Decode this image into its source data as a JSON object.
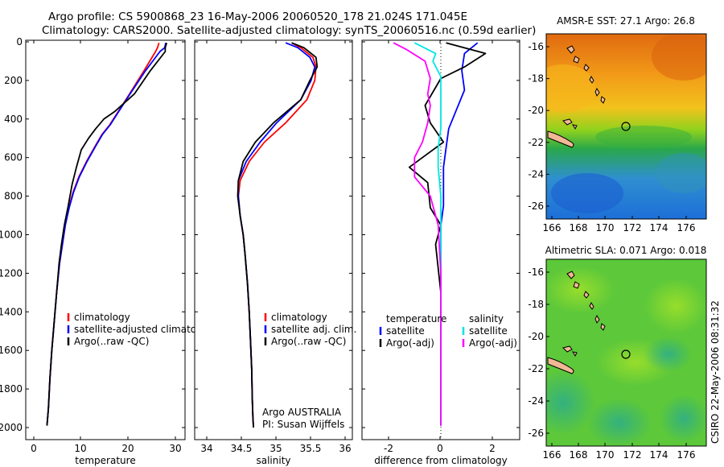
{
  "header": {
    "line1": "Argo profile: CS 5900868_23 16-May-2006 20060520_178 21.024S 171.045E",
    "line2": "Climatology: CARS2000. Satellite-adjusted climatology: synTS_20060516.nc (0.59d earlier)"
  },
  "side_label": "CSIRO 22-May-2006 08:31:32",
  "chart_data": [
    {
      "type": "line",
      "xlabel": "temperature",
      "ylabel": "",
      "xlim": [
        -2,
        31
      ],
      "ylim": [
        2050,
        0
      ],
      "xticks": [
        "0",
        "10",
        "20",
        "30"
      ],
      "yticks": [
        "0",
        "200",
        "400",
        "600",
        "800",
        "1000",
        "1200",
        "1400",
        "1600",
        "1800",
        "2000"
      ],
      "legend": [
        "climatology",
        "satellite-adjusted climatology",
        "Argo(..raw -QC)"
      ],
      "colors": {
        "climatology": "#ff0000",
        "satellite": "#0000ff",
        "argo": "#000000"
      },
      "series": [
        {
          "name": "climatology",
          "color": "#ff0000",
          "x": [
            25.6,
            25.3,
            24.9,
            22.5,
            19.5,
            17.2,
            15.4,
            13.8,
            12.4,
            10.6,
            9.0,
            7.8,
            6.9,
            6.2,
            5.6,
            5.0,
            4.4,
            3.9,
            3.4,
            3.0,
            2.7,
            2.4
          ],
          "y": [
            5,
            30,
            50,
            150,
            270,
            360,
            430,
            480,
            540,
            620,
            700,
            780,
            860,
            950,
            1050,
            1150,
            1300,
            1450,
            1600,
            1750,
            1900,
            1990
          ]
        },
        {
          "name": "satellite-adjusted climatology",
          "color": "#0000ff",
          "x": [
            27.0,
            26.8,
            25.8,
            22.8,
            19.6,
            17.3,
            15.5,
            13.9,
            12.5,
            10.7,
            9.1,
            7.9,
            7.0,
            6.2,
            5.6,
            5.0,
            4.4,
            3.9,
            3.4,
            3.0,
            2.7,
            2.4
          ],
          "y": [
            5,
            30,
            50,
            150,
            270,
            360,
            430,
            480,
            540,
            620,
            700,
            780,
            860,
            950,
            1050,
            1150,
            1300,
            1450,
            1600,
            1750,
            1900,
            1990
          ]
        },
        {
          "name": "Argo(..raw -QC)",
          "color": "#000000",
          "x": [
            27.2,
            26.9,
            26.9,
            23.8,
            20.5,
            16.5,
            14.2,
            12.5,
            11.0,
            9.5,
            8.5,
            7.6,
            6.8,
            6.0,
            5.4,
            4.9,
            4.4,
            3.9,
            3.4,
            3.0,
            2.7,
            2.4
          ],
          "y": [
            5,
            30,
            50,
            150,
            270,
            360,
            400,
            450,
            500,
            560,
            650,
            740,
            850,
            950,
            1050,
            1150,
            1300,
            1450,
            1600,
            1750,
            1900,
            1990
          ]
        }
      ]
    },
    {
      "type": "line",
      "xlabel": "salinity",
      "xlim": [
        33.7,
        36.3
      ],
      "ylim": [
        2050,
        0
      ],
      "xticks": [
        "34",
        "34.5",
        "35",
        "35.5",
        "36"
      ],
      "legend": [
        "climatology",
        "satellite adj. clim.",
        "Argo(..raw -QC)"
      ],
      "annotation": [
        "Argo AUSTRALIA",
        "PI: Susan Wijffels"
      ],
      "series": [
        {
          "name": "climatology",
          "color": "#ff0000",
          "x": [
            35.3,
            35.45,
            35.65,
            35.7,
            35.68,
            35.55,
            35.2,
            34.85,
            34.6,
            34.45,
            34.42,
            34.45,
            34.5,
            34.53,
            34.57,
            34.6,
            34.62,
            34.64,
            34.65,
            34.66,
            34.67
          ],
          "y": [
            5,
            30,
            80,
            130,
            200,
            300,
            420,
            520,
            620,
            720,
            800,
            900,
            1000,
            1100,
            1250,
            1400,
            1550,
            1700,
            1850,
            1950,
            2000
          ]
        },
        {
          "name": "satellite adj. clim.",
          "color": "#0000ff",
          "x": [
            35.2,
            35.4,
            35.6,
            35.68,
            35.62,
            35.45,
            35.05,
            34.78,
            34.55,
            34.42,
            34.42,
            34.45,
            34.5,
            34.53,
            34.57,
            34.6,
            34.62,
            34.64,
            34.65,
            34.66,
            34.67
          ],
          "y": [
            5,
            30,
            80,
            130,
            200,
            300,
            420,
            520,
            620,
            720,
            800,
            900,
            1000,
            1100,
            1250,
            1400,
            1550,
            1700,
            1850,
            1950,
            2000
          ]
        },
        {
          "name": "Argo(..raw -QC)",
          "color": "#000000",
          "x": [
            35.3,
            35.5,
            35.7,
            35.72,
            35.6,
            35.45,
            35.0,
            34.7,
            34.5,
            34.42,
            34.41,
            34.45,
            34.5,
            34.53,
            34.57,
            34.6,
            34.62,
            34.64,
            34.65,
            34.66,
            34.67
          ],
          "y": [
            5,
            30,
            80,
            130,
            200,
            300,
            420,
            520,
            620,
            720,
            800,
            900,
            1000,
            1100,
            1250,
            1400,
            1550,
            1700,
            1850,
            1950,
            2000
          ]
        }
      ]
    },
    {
      "type": "line",
      "xlabel": "difference from climatology",
      "xlim": [
        -3,
        3
      ],
      "ylim": [
        2050,
        0
      ],
      "xticks": [
        "-2",
        "0",
        "2"
      ],
      "legend_left_title": "temperature",
      "legend_right_title": "salinity",
      "legend": [
        "satellite",
        "Argo(-adj)",
        "satellite",
        "Argo(-adj)"
      ],
      "series": [
        {
          "name": "temperature satellite",
          "color": "#0000ff",
          "x": [
            1.4,
            0.9,
            0.8,
            0.9,
            0.6,
            0.3,
            0.2,
            0.1,
            0.1,
            0.1,
            0.0,
            0.0,
            0.0,
            0.0,
            0.0,
            0.0
          ],
          "y": [
            5,
            60,
            150,
            250,
            350,
            450,
            550,
            650,
            750,
            850,
            950,
            1100,
            1300,
            1600,
            1800,
            1990
          ]
        },
        {
          "name": "temperature Argo(-adj)",
          "color": "#000000",
          "x": [
            0.2,
            1.7,
            0.9,
            0.0,
            -0.6,
            -0.4,
            0.1,
            -0.7,
            -1.2,
            -0.5,
            -0.4,
            0.0,
            -0.2,
            0.0,
            0.0,
            0.0
          ],
          "y": [
            5,
            60,
            130,
            190,
            330,
            420,
            520,
            600,
            650,
            730,
            860,
            950,
            1050,
            1300,
            1600,
            1990
          ]
        },
        {
          "name": "salinity satellite",
          "color": "#00e5e5",
          "x": [
            -1.0,
            -0.2,
            -0.3,
            0.0,
            0.0,
            0.0,
            -0.1,
            -0.1,
            0.0,
            0.0,
            0.0,
            0.0
          ],
          "y": [
            5,
            60,
            100,
            180,
            300,
            450,
            550,
            650,
            800,
            1000,
            1400,
            1990
          ]
        },
        {
          "name": "salinity Argo(-adj)",
          "color": "#ff00ff",
          "x": [
            -1.8,
            -1.3,
            -0.6,
            -0.4,
            -0.5,
            -0.4,
            -0.5,
            -0.7,
            -1.0,
            -1.0,
            -0.4,
            -0.1,
            0.0,
            0.0
          ],
          "y": [
            5,
            40,
            100,
            190,
            270,
            330,
            420,
            520,
            600,
            700,
            800,
            950,
            1200,
            1990
          ]
        }
      ]
    }
  ],
  "maps": {
    "sst": {
      "title": "AMSR-E SST: 27.1 Argo: 26.8",
      "xticks": [
        "166",
        "168",
        "170",
        "172",
        "174",
        "176"
      ],
      "yticks": [
        "-16",
        "-18",
        "-20",
        "-22",
        "-24",
        "-26"
      ]
    },
    "sla": {
      "title": "Altimetric SLA: 0.071 Argo: 0.018",
      "xticks": [
        "166",
        "168",
        "170",
        "172",
        "174",
        "176"
      ],
      "yticks": [
        "-16",
        "-18",
        "-20",
        "-22",
        "-24",
        "-26"
      ]
    }
  }
}
